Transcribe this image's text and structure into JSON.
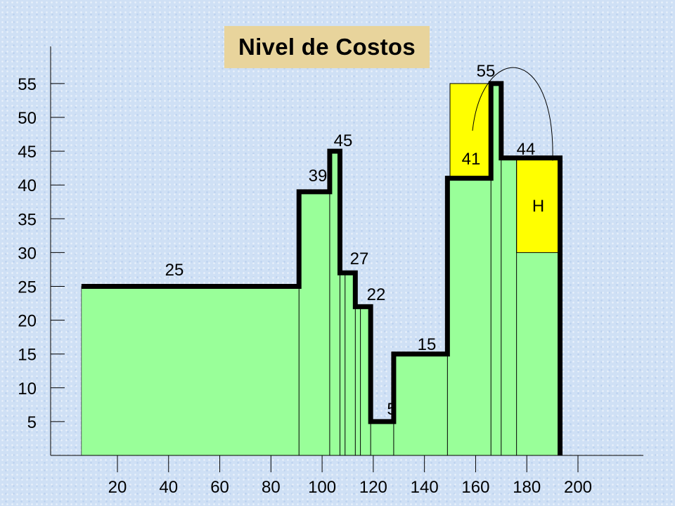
{
  "chart_data": {
    "type": "step",
    "title": "Nivel de Costos",
    "xlabel": "",
    "ylabel": "",
    "xlim": [
      0,
      200
    ],
    "ylim": [
      0,
      55
    ],
    "x_ticks": [
      20,
      40,
      60,
      80,
      100,
      120,
      140,
      160,
      180,
      200
    ],
    "y_ticks": [
      5,
      10,
      15,
      20,
      25,
      30,
      35,
      40,
      45,
      50,
      55
    ],
    "segments": [
      {
        "x0": 6,
        "x1": 91,
        "value": 25,
        "label": "25"
      },
      {
        "x0": 91,
        "x1": 103,
        "value": 39,
        "label": "39"
      },
      {
        "x0": 103,
        "x1": 107,
        "value": 45,
        "label": "45"
      },
      {
        "x0": 107,
        "x1": 113,
        "value": 27,
        "label": "27"
      },
      {
        "x0": 113,
        "x1": 119,
        "value": 22,
        "label": "22"
      },
      {
        "x0": 119,
        "x1": 128,
        "value": 5,
        "label": "5"
      },
      {
        "x0": 128,
        "x1": 149,
        "value": 15,
        "label": "15"
      },
      {
        "x0": 149,
        "x1": 166,
        "value": 41,
        "label": "41"
      },
      {
        "x0": 166,
        "x1": 170,
        "value": 55,
        "label": "55"
      },
      {
        "x0": 170,
        "x1": 193,
        "value": 44,
        "label": "44"
      }
    ],
    "extra_dividers": [
      109,
      115,
      176
    ],
    "highlight_regions": [
      {
        "x0": 150,
        "x1": 166,
        "y0": 41,
        "y1": 55,
        "label": "",
        "color": "#ffff00"
      },
      {
        "x0": 176,
        "x1": 193,
        "y0": 30,
        "y1": 44,
        "label": "H",
        "color": "#ffff00"
      }
    ],
    "fill_color": "#99ff99",
    "line_color": "#000000",
    "grid": false,
    "legend": "none"
  }
}
